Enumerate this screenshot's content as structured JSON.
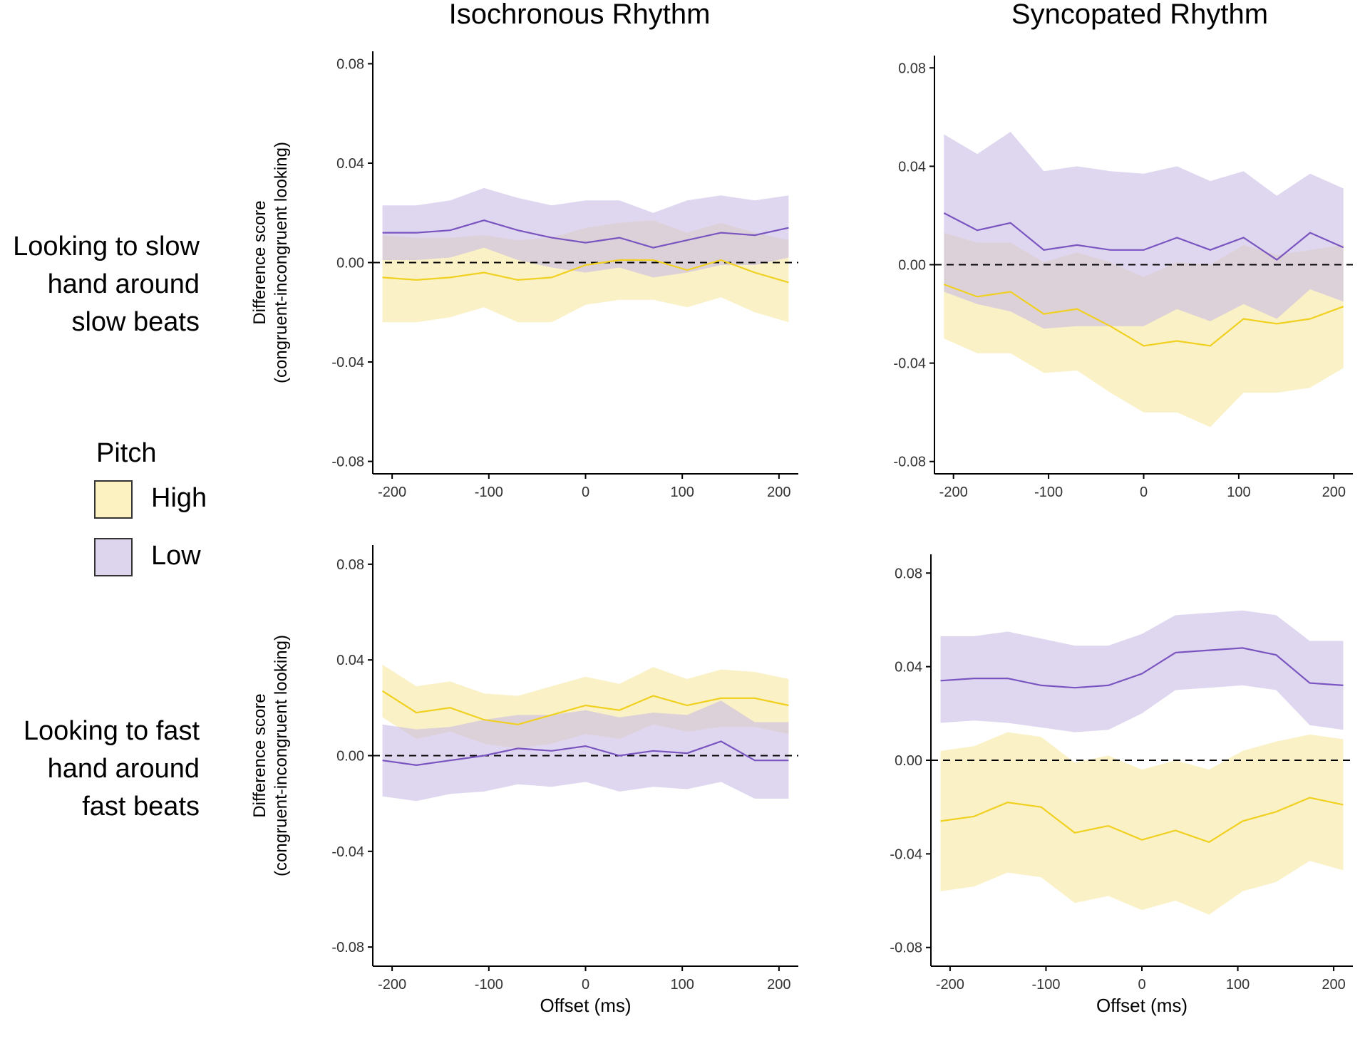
{
  "column_titles": [
    "Isochronous Rhythm",
    "Syncopated Rhythm"
  ],
  "row_labels": [
    [
      "Looking to slow",
      "hand around",
      "slow beats"
    ],
    [
      "Looking to fast",
      "hand around",
      "fast beats"
    ]
  ],
  "legend": {
    "title": "Pitch",
    "items": [
      {
        "label": "High",
        "fill": "#fbf1c1",
        "line": "#f0d020"
      },
      {
        "label": "Low",
        "fill": "#ddd5ee",
        "line": "#7a55c0"
      }
    ]
  },
  "colors": {
    "high_fill": "#f7e8a0",
    "low_fill": "#c9bce6",
    "high_line": "#f0d020",
    "low_line": "#7a55c0"
  },
  "chart_data": [
    {
      "type": "line",
      "title": "Isochronous Rhythm",
      "row": "slow",
      "xlabel": "",
      "ylabel": "Difference score",
      "ylabel2": "(congruent-incongruent looking)",
      "xlim": [
        -220,
        220
      ],
      "ylim": [
        -0.085,
        0.085
      ],
      "xticks": [
        -200,
        -100,
        0,
        100,
        200
      ],
      "yticks": [
        0.08,
        0.04,
        0.0,
        -0.04,
        -0.08
      ],
      "ytick_labels": [
        "0.08",
        "0.04",
        "0.00",
        "-0.04",
        "-0.08"
      ],
      "x": [
        -210,
        -175,
        -140,
        -105,
        -70,
        -35,
        0,
        35,
        70,
        105,
        140,
        175,
        210
      ],
      "series": [
        {
          "name": "High",
          "values": [
            -0.006,
            -0.007,
            -0.006,
            -0.004,
            -0.007,
            -0.006,
            -0.001,
            0.001,
            0.001,
            -0.003,
            0.001,
            -0.004,
            -0.008
          ],
          "lower": [
            -0.024,
            -0.024,
            -0.022,
            -0.018,
            -0.024,
            -0.024,
            -0.017,
            -0.015,
            -0.015,
            -0.018,
            -0.014,
            -0.02,
            -0.024
          ],
          "upper": [
            0.011,
            0.01,
            0.01,
            0.011,
            0.009,
            0.01,
            0.014,
            0.016,
            0.017,
            0.012,
            0.016,
            0.012,
            0.009
          ]
        },
        {
          "name": "Low",
          "values": [
            0.012,
            0.012,
            0.013,
            0.017,
            0.013,
            0.01,
            0.008,
            0.01,
            0.006,
            0.009,
            0.012,
            0.011,
            0.014
          ],
          "lower": [
            0.001,
            0.001,
            0.002,
            0.006,
            0.001,
            -0.002,
            -0.004,
            -0.002,
            -0.006,
            -0.004,
            -0.001,
            -0.001,
            0.002
          ],
          "upper": [
            0.023,
            0.023,
            0.025,
            0.03,
            0.026,
            0.023,
            0.025,
            0.025,
            0.02,
            0.025,
            0.027,
            0.025,
            0.027
          ]
        }
      ]
    },
    {
      "type": "line",
      "title": "Syncopated Rhythm",
      "row": "slow",
      "xlabel": "",
      "ylabel": "",
      "xlim": [
        -220,
        220
      ],
      "ylim": [
        -0.085,
        0.085
      ],
      "xticks": [
        -200,
        -100,
        0,
        100,
        200
      ],
      "yticks": [
        0.08,
        0.04,
        0.0,
        -0.04,
        -0.08
      ],
      "ytick_labels": [
        "0.08",
        "0.04",
        "0.00",
        "-0.04",
        "-0.08"
      ],
      "x": [
        -210,
        -175,
        -140,
        -105,
        -70,
        -35,
        0,
        35,
        70,
        105,
        140,
        175,
        210
      ],
      "series": [
        {
          "name": "High",
          "values": [
            -0.008,
            -0.013,
            -0.011,
            -0.02,
            -0.018,
            -0.025,
            -0.033,
            -0.031,
            -0.033,
            -0.022,
            -0.024,
            -0.022,
            -0.017
          ],
          "lower": [
            -0.03,
            -0.036,
            -0.036,
            -0.044,
            -0.043,
            -0.052,
            -0.06,
            -0.06,
            -0.066,
            -0.052,
            -0.052,
            -0.05,
            -0.042
          ],
          "upper": [
            0.013,
            0.009,
            0.009,
            0.001,
            0.005,
            0.001,
            -0.005,
            0.001,
            0.0,
            0.008,
            0.004,
            0.006,
            0.008
          ]
        },
        {
          "name": "Low",
          "values": [
            0.021,
            0.014,
            0.017,
            0.006,
            0.008,
            0.006,
            0.006,
            0.011,
            0.006,
            0.011,
            0.002,
            0.013,
            0.007
          ],
          "lower": [
            -0.011,
            -0.016,
            -0.019,
            -0.026,
            -0.025,
            -0.025,
            -0.025,
            -0.018,
            -0.023,
            -0.016,
            -0.022,
            -0.01,
            -0.015
          ],
          "upper": [
            0.053,
            0.045,
            0.054,
            0.038,
            0.04,
            0.038,
            0.037,
            0.04,
            0.034,
            0.038,
            0.028,
            0.037,
            0.031
          ]
        }
      ]
    },
    {
      "type": "line",
      "title": "Isochronous Rhythm",
      "row": "fast",
      "xlabel": "Offset (ms)",
      "ylabel": "Difference score",
      "ylabel2": "(congruent-incongruent looking)",
      "xlim": [
        -220,
        220
      ],
      "ylim": [
        -0.088,
        0.088
      ],
      "xticks": [
        -200,
        -100,
        0,
        100,
        200
      ],
      "yticks": [
        0.08,
        0.04,
        0.0,
        -0.04,
        -0.08
      ],
      "ytick_labels": [
        "0.08",
        "0.04",
        "0.00",
        "-0.04",
        "-0.08"
      ],
      "x": [
        -210,
        -175,
        -140,
        -105,
        -70,
        -35,
        0,
        35,
        70,
        105,
        140,
        175,
        210
      ],
      "series": [
        {
          "name": "High",
          "values": [
            0.027,
            0.018,
            0.02,
            0.015,
            0.013,
            0.017,
            0.021,
            0.019,
            0.025,
            0.021,
            0.024,
            0.024,
            0.021
          ],
          "lower": [
            0.016,
            0.007,
            0.01,
            0.005,
            0.003,
            0.005,
            0.009,
            0.007,
            0.013,
            0.01,
            0.012,
            0.012,
            0.009
          ],
          "upper": [
            0.038,
            0.029,
            0.031,
            0.026,
            0.025,
            0.029,
            0.033,
            0.03,
            0.037,
            0.032,
            0.036,
            0.035,
            0.032
          ]
        },
        {
          "name": "Low",
          "values": [
            -0.002,
            -0.004,
            -0.002,
            0.0,
            0.003,
            0.002,
            0.004,
            0.0,
            0.002,
            0.001,
            0.006,
            -0.002,
            -0.002
          ],
          "lower": [
            -0.017,
            -0.019,
            -0.016,
            -0.015,
            -0.012,
            -0.013,
            -0.011,
            -0.015,
            -0.013,
            -0.014,
            -0.011,
            -0.018,
            -0.018
          ],
          "upper": [
            0.013,
            0.011,
            0.012,
            0.015,
            0.017,
            0.017,
            0.019,
            0.016,
            0.018,
            0.017,
            0.023,
            0.014,
            0.014
          ]
        }
      ]
    },
    {
      "type": "line",
      "title": "Syncopated Rhythm",
      "row": "fast",
      "xlabel": "Offset (ms)",
      "ylabel": "",
      "xlim": [
        -220,
        220
      ],
      "ylim": [
        -0.088,
        0.088
      ],
      "xticks": [
        -200,
        -100,
        0,
        100,
        200
      ],
      "yticks": [
        0.08,
        0.04,
        0.0,
        -0.04,
        -0.08
      ],
      "ytick_labels": [
        "0.08",
        "0.04",
        "0.00",
        "-0.04",
        "-0.08"
      ],
      "x": [
        -210,
        -175,
        -140,
        -105,
        -70,
        -35,
        0,
        35,
        70,
        105,
        140,
        175,
        210
      ],
      "series": [
        {
          "name": "High",
          "values": [
            -0.026,
            -0.024,
            -0.018,
            -0.02,
            -0.031,
            -0.028,
            -0.034,
            -0.03,
            -0.035,
            -0.026,
            -0.022,
            -0.016,
            -0.019
          ],
          "lower": [
            -0.056,
            -0.054,
            -0.048,
            -0.05,
            -0.061,
            -0.058,
            -0.064,
            -0.06,
            -0.066,
            -0.056,
            -0.052,
            -0.043,
            -0.047
          ],
          "upper": [
            0.004,
            0.006,
            0.012,
            0.01,
            -0.001,
            0.002,
            -0.004,
            0.0,
            -0.004,
            0.004,
            0.008,
            0.011,
            0.009
          ]
        },
        {
          "name": "Low",
          "values": [
            0.034,
            0.035,
            0.035,
            0.032,
            0.031,
            0.032,
            0.037,
            0.046,
            0.047,
            0.048,
            0.045,
            0.033,
            0.032
          ],
          "lower": [
            0.016,
            0.017,
            0.016,
            0.014,
            0.012,
            0.013,
            0.02,
            0.03,
            0.031,
            0.032,
            0.03,
            0.015,
            0.013
          ],
          "upper": [
            0.053,
            0.053,
            0.055,
            0.052,
            0.049,
            0.049,
            0.054,
            0.062,
            0.063,
            0.064,
            0.062,
            0.051,
            0.051
          ]
        }
      ]
    }
  ]
}
